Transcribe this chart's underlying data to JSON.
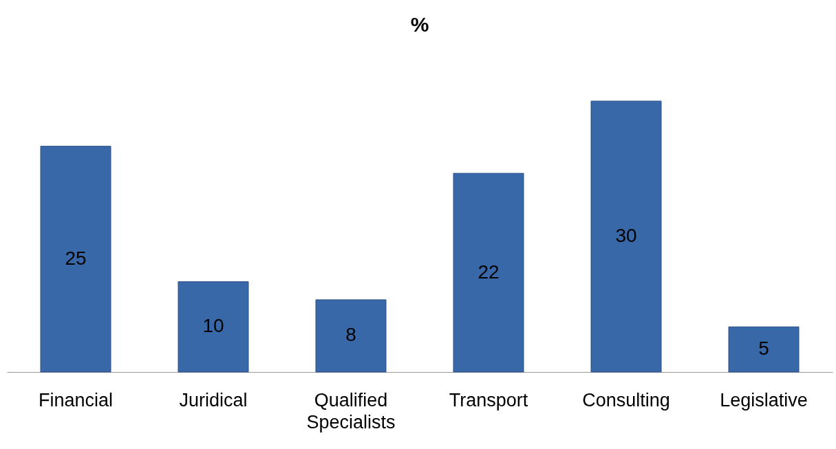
{
  "chart_data": {
    "type": "bar",
    "title": "%",
    "categories": [
      "Financial",
      "Juridical",
      "Qualified Specialists",
      "Transport",
      "Consulting",
      "Legislative"
    ],
    "values": [
      25,
      10,
      8,
      22,
      30,
      5
    ],
    "color": "#3868a8",
    "data_labels": true
  }
}
